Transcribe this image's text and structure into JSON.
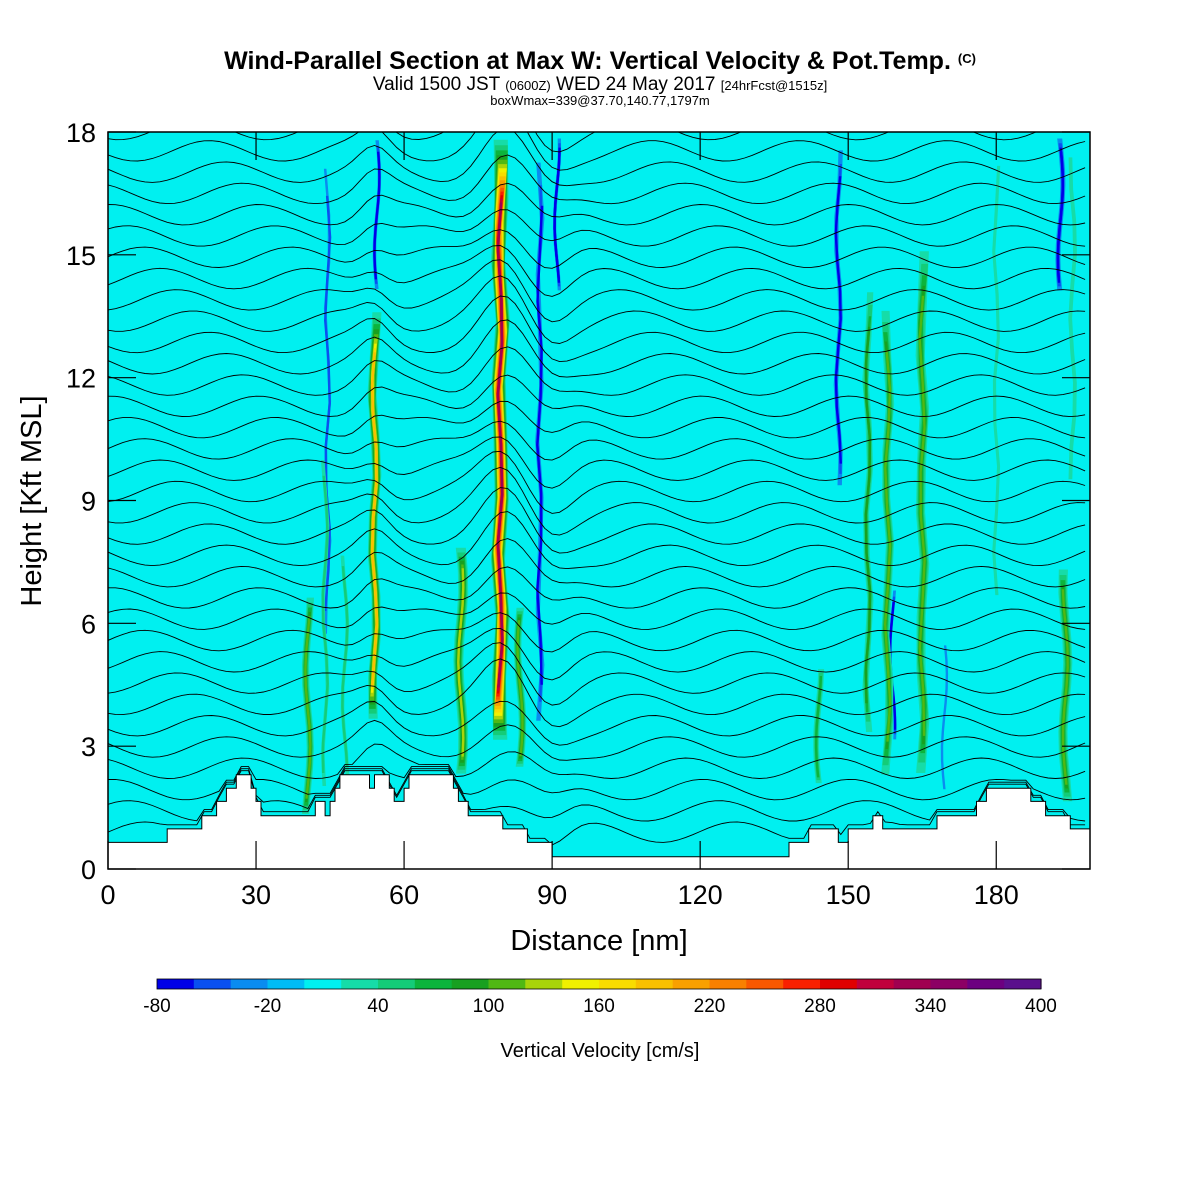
{
  "chart_data": {
    "type": "heatmap",
    "title": {
      "main": "Wind-Parallel Section at Max W: Vertical Velocity & Pot.Temp.",
      "mark": "(C)"
    },
    "subtitle": {
      "part1": "Valid 1500 JST",
      "part2": "(0600Z)",
      "part3": "WED 24 May 2017",
      "part4": "[24hrFcst@1515z]"
    },
    "info_line": "boxWmax=339@37.70,140.77,1797m",
    "xlabel": "Distance [nm]",
    "ylabel": "Height [Kft MSL]",
    "xlim": [
      0,
      199
    ],
    "ylim": [
      0,
      18
    ],
    "x_ticks": [
      "0",
      "30",
      "60",
      "90",
      "120",
      "150",
      "180"
    ],
    "y_ticks": [
      "0",
      "3",
      "6",
      "9",
      "12",
      "15",
      "18"
    ],
    "colorbar": {
      "label": "Vertical Velocity [cm/s]",
      "tick_labels": [
        "-80",
        "-20",
        "40",
        "100",
        "160",
        "220",
        "280",
        "340",
        "400"
      ],
      "levels": [
        -80,
        -60,
        -40,
        -20,
        0,
        20,
        40,
        60,
        80,
        100,
        120,
        140,
        160,
        180,
        200,
        220,
        240,
        260,
        280,
        300,
        320,
        340,
        360,
        380,
        400
      ],
      "colors": [
        "#0000e8",
        "#0a50f0",
        "#0a8cf0",
        "#00bcf5",
        "#00f0f0",
        "#16dca8",
        "#14cc78",
        "#0cb43c",
        "#18a020",
        "#50b814",
        "#a8d40a",
        "#f0f000",
        "#f8dc00",
        "#f8c000",
        "#f8a000",
        "#f88000",
        "#f85800",
        "#f82000",
        "#e00000",
        "#c0003c",
        "#a00050",
        "#8c0064",
        "#6c0080",
        "#5a108c"
      ]
    },
    "background_color": "#00f0f0",
    "updraft_columns": [
      {
        "x": 40.5,
        "width": 2.0,
        "y_bottom": 1.2,
        "y_top": 6.8,
        "peak": 110
      },
      {
        "x": 44.0,
        "width": 1.4,
        "y_bottom": 1.6,
        "y_top": 10.5,
        "peak": 50
      },
      {
        "x": 48.0,
        "width": 1.4,
        "y_bottom": 2.0,
        "y_top": 8.0,
        "peak": 50
      },
      {
        "x": 54.0,
        "width": 2.2,
        "y_bottom": 3.5,
        "y_top": 13.8,
        "peak": 190
      },
      {
        "x": 71.5,
        "width": 2.6,
        "y_bottom": 2.2,
        "y_top": 8.0,
        "peak": 130
      },
      {
        "x": 79.5,
        "width": 3.2,
        "y_bottom": 3.0,
        "y_top": 18.0,
        "peak": 339
      },
      {
        "x": 83.5,
        "width": 2.0,
        "y_bottom": 2.4,
        "y_top": 6.5,
        "peak": 120
      },
      {
        "x": 144.0,
        "width": 1.8,
        "y_bottom": 2.0,
        "y_top": 5.0,
        "peak": 80
      },
      {
        "x": 154.0,
        "width": 1.8,
        "y_bottom": 3.0,
        "y_top": 14.5,
        "peak": 90
      },
      {
        "x": 158.0,
        "width": 2.2,
        "y_bottom": 2.0,
        "y_top": 14.0,
        "peak": 110
      },
      {
        "x": 165.0,
        "width": 2.5,
        "y_bottom": 2.0,
        "y_top": 15.5,
        "peak": 110
      },
      {
        "x": 180.0,
        "width": 1.5,
        "y_bottom": 6.0,
        "y_top": 18.0,
        "peak": 40
      },
      {
        "x": 194.0,
        "width": 2.5,
        "y_bottom": 1.5,
        "y_top": 7.5,
        "peak": 110
      },
      {
        "x": 195.5,
        "width": 1.8,
        "y_bottom": 9.0,
        "y_top": 18.0,
        "peak": 40
      }
    ],
    "downdraft_columns": [
      {
        "x": 44.5,
        "width": 1.2,
        "y_bottom": 5.0,
        "y_top": 18.0,
        "peak": -40
      },
      {
        "x": 54.5,
        "width": 1.2,
        "y_bottom": 14.0,
        "y_top": 18.0,
        "peak": -60
      },
      {
        "x": 87.5,
        "width": 1.5,
        "y_bottom": 3.0,
        "y_top": 18.0,
        "peak": -60
      },
      {
        "x": 91.0,
        "width": 1.0,
        "y_bottom": 14.0,
        "y_top": 18.0,
        "peak": -80
      },
      {
        "x": 148.0,
        "width": 1.5,
        "y_bottom": 9.0,
        "y_top": 18.0,
        "peak": -60
      },
      {
        "x": 159.0,
        "width": 1.0,
        "y_bottom": 3.0,
        "y_top": 7.0,
        "peak": -60
      },
      {
        "x": 169.5,
        "width": 1.2,
        "y_bottom": 1.5,
        "y_top": 6.0,
        "peak": -20
      },
      {
        "x": 193.0,
        "width": 1.5,
        "y_bottom": 14.0,
        "y_top": 18.0,
        "peak": -80
      }
    ],
    "terrain_profile_kft": [
      [
        0,
        0.65
      ],
      [
        12,
        0.65
      ],
      [
        12,
        0.98
      ],
      [
        19,
        0.98
      ],
      [
        19,
        1.3
      ],
      [
        22,
        1.3
      ],
      [
        22,
        1.65
      ],
      [
        24,
        1.65
      ],
      [
        24,
        1.97
      ],
      [
        26,
        1.97
      ],
      [
        26,
        2.3
      ],
      [
        29,
        2.3
      ],
      [
        29,
        1.97
      ],
      [
        30,
        1.97
      ],
      [
        30,
        1.65
      ],
      [
        31,
        1.65
      ],
      [
        31,
        1.3
      ],
      [
        42,
        1.3
      ],
      [
        42,
        1.65
      ],
      [
        44,
        1.65
      ],
      [
        44,
        1.3
      ],
      [
        45,
        1.3
      ],
      [
        45,
        1.65
      ],
      [
        46,
        1.65
      ],
      [
        46,
        1.97
      ],
      [
        47,
        1.97
      ],
      [
        47,
        2.3
      ],
      [
        53,
        2.3
      ],
      [
        53,
        1.97
      ],
      [
        54,
        1.97
      ],
      [
        54,
        2.3
      ],
      [
        57,
        2.3
      ],
      [
        57,
        1.97
      ],
      [
        58,
        1.97
      ],
      [
        58,
        1.65
      ],
      [
        60,
        1.65
      ],
      [
        60,
        1.97
      ],
      [
        61,
        1.97
      ],
      [
        61,
        2.3
      ],
      [
        70,
        2.3
      ],
      [
        70,
        1.97
      ],
      [
        71,
        1.97
      ],
      [
        71,
        1.65
      ],
      [
        73,
        1.65
      ],
      [
        73,
        1.3
      ],
      [
        80,
        1.3
      ],
      [
        80,
        0.98
      ],
      [
        85,
        0.98
      ],
      [
        85,
        0.65
      ],
      [
        90,
        0.65
      ],
      [
        90,
        0.3
      ],
      [
        138,
        0.3
      ],
      [
        138,
        0.65
      ],
      [
        142,
        0.65
      ],
      [
        142,
        0.98
      ],
      [
        148,
        0.98
      ],
      [
        148,
        0.65
      ],
      [
        150,
        0.65
      ],
      [
        150,
        0.98
      ],
      [
        155,
        0.98
      ],
      [
        155,
        1.3
      ],
      [
        157,
        1.3
      ],
      [
        157,
        0.98
      ],
      [
        168,
        0.98
      ],
      [
        168,
        1.3
      ],
      [
        176,
        1.3
      ],
      [
        176,
        1.65
      ],
      [
        178,
        1.65
      ],
      [
        178,
        1.97
      ],
      [
        187,
        1.97
      ],
      [
        187,
        1.65
      ],
      [
        190,
        1.65
      ],
      [
        190,
        1.3
      ],
      [
        195,
        1.3
      ],
      [
        195,
        0.98
      ],
      [
        199,
        0.98
      ]
    ]
  }
}
